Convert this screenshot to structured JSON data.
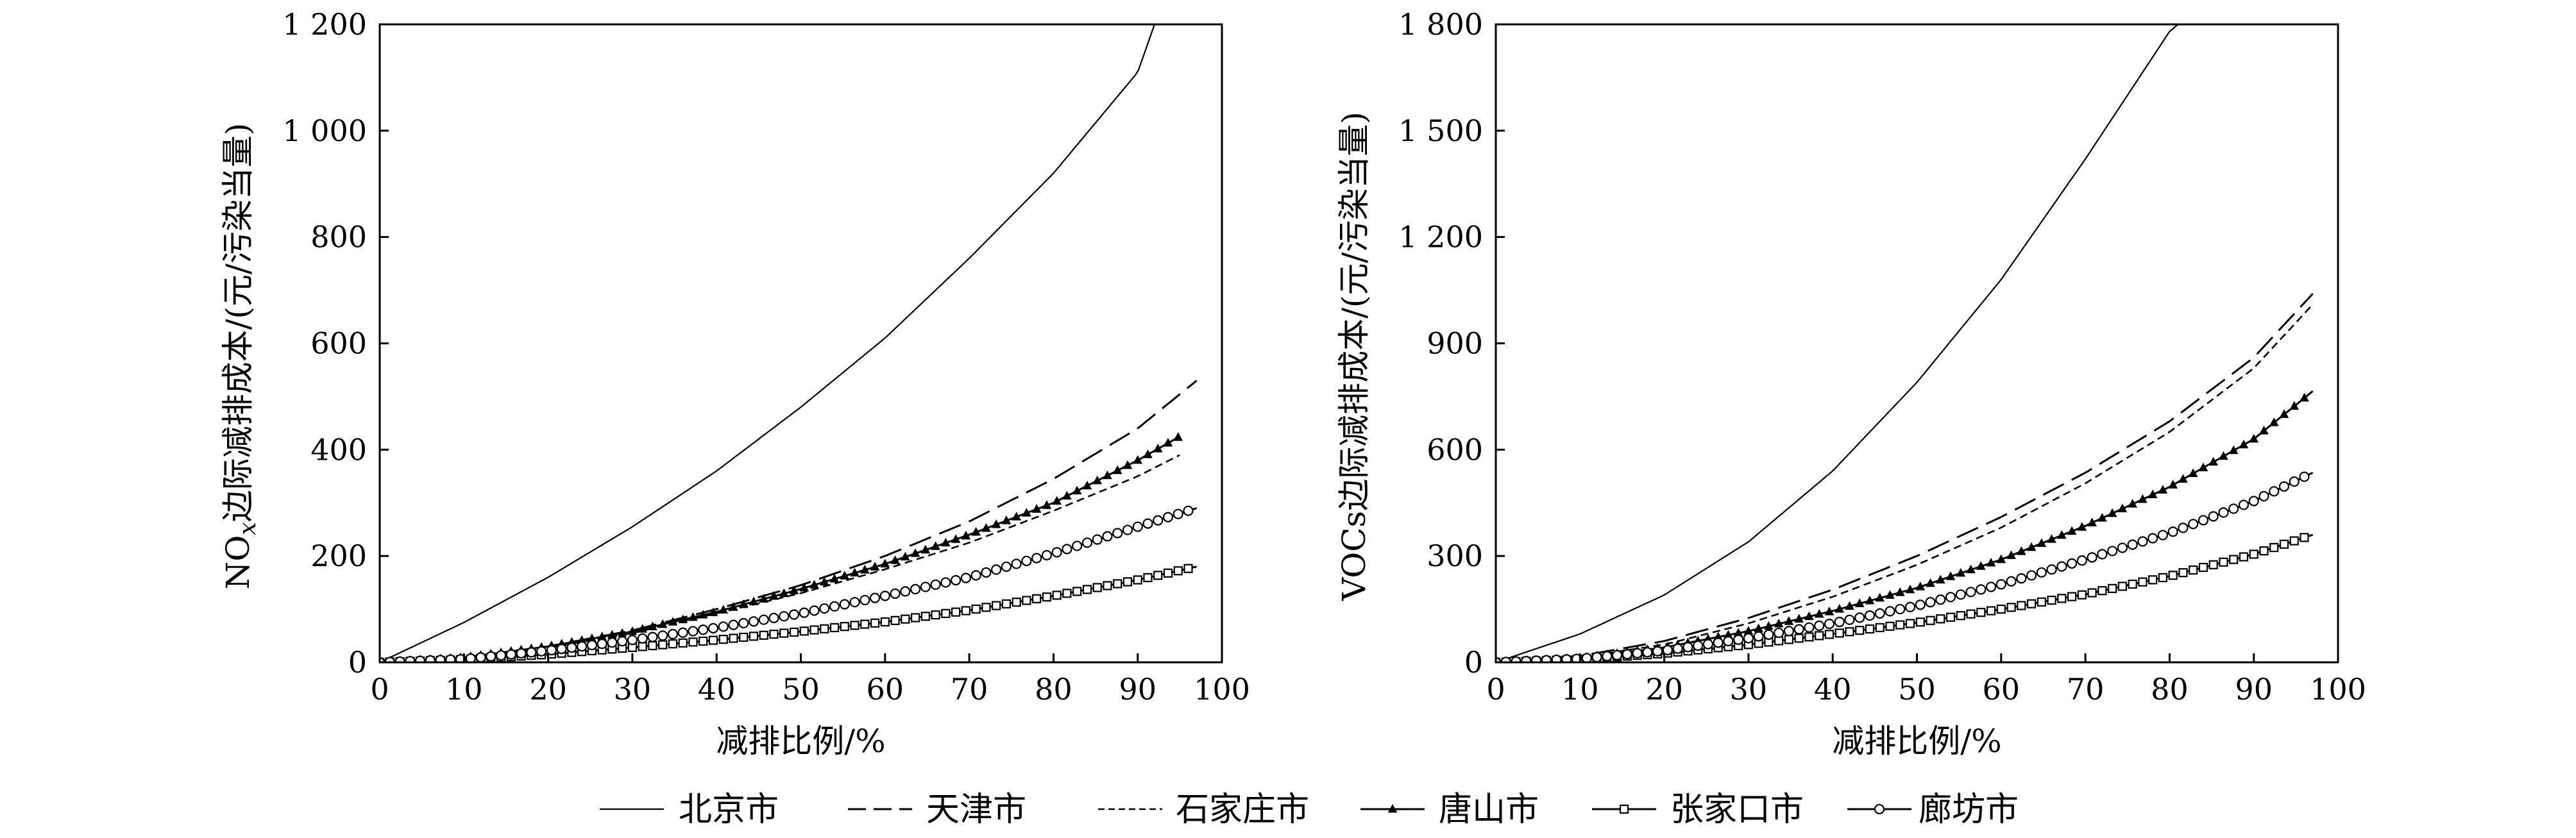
{
  "chart_data": [
    {
      "type": "line",
      "xlabel": "减排比例/%",
      "ylabel": "NOx边际减排成本/(元/污染当量)",
      "ylabel_main": "NO",
      "ylabel_sub": "x",
      "ylabel_rest": "边际减排成本/(元/污染当量)",
      "xlim": [
        0,
        100
      ],
      "ylim": [
        0,
        1200
      ],
      "xticks": [
        0,
        10,
        20,
        30,
        40,
        50,
        60,
        70,
        80,
        90,
        100
      ],
      "yticks": [
        0,
        200,
        400,
        600,
        800,
        1000,
        1200
      ],
      "xtick_labels": [
        "0",
        "10",
        "20",
        "30",
        "40",
        "50",
        "60",
        "70",
        "80",
        "90",
        "100"
      ],
      "ytick_labels": [
        "0",
        "200",
        "400",
        "600",
        "800",
        "1 000",
        "1 200"
      ],
      "series": [
        {
          "name": "北京市",
          "x": [
            0,
            10,
            20,
            30,
            40,
            50,
            60,
            70,
            80,
            90,
            92
          ],
          "y": [
            0,
            75,
            160,
            255,
            360,
            480,
            610,
            760,
            920,
            1110,
            1200
          ]
        },
        {
          "name": "天津市",
          "x": [
            0,
            10,
            20,
            30,
            40,
            50,
            60,
            70,
            80,
            90,
            97
          ],
          "y": [
            0,
            8,
            30,
            60,
            100,
            145,
            200,
            265,
            345,
            440,
            530
          ]
        },
        {
          "name": "石家庄市",
          "x": [
            0,
            10,
            20,
            30,
            40,
            50,
            60,
            70,
            80,
            90,
            95
          ],
          "y": [
            0,
            7,
            27,
            55,
            92,
            130,
            175,
            225,
            285,
            350,
            390
          ]
        },
        {
          "name": "唐山市",
          "x": [
            0,
            10,
            20,
            30,
            40,
            50,
            60,
            70,
            80,
            90,
            95
          ],
          "y": [
            0,
            9,
            30,
            58,
            95,
            138,
            185,
            240,
            300,
            380,
            425
          ]
        },
        {
          "name": "张家口市",
          "x": [
            0,
            10,
            20,
            30,
            40,
            50,
            60,
            70,
            80,
            90,
            97
          ],
          "y": [
            0,
            5,
            15,
            28,
            42,
            58,
            76,
            98,
            125,
            155,
            180
          ]
        },
        {
          "name": "廊坊市",
          "x": [
            0,
            10,
            20,
            30,
            40,
            50,
            60,
            70,
            80,
            90,
            97
          ],
          "y": [
            0,
            6,
            22,
            42,
            65,
            92,
            125,
            160,
            205,
            255,
            290
          ]
        }
      ]
    },
    {
      "type": "line",
      "xlabel": "减排比例/%",
      "ylabel": "VOCs边际减排成本/(元/污染当量)",
      "xlim": [
        0,
        100
      ],
      "ylim": [
        0,
        1800
      ],
      "xticks": [
        0,
        10,
        20,
        30,
        40,
        50,
        60,
        70,
        80,
        90,
        100
      ],
      "yticks": [
        0,
        300,
        600,
        900,
        1200,
        1500,
        1800
      ],
      "xtick_labels": [
        "0",
        "10",
        "20",
        "30",
        "40",
        "50",
        "60",
        "70",
        "80",
        "90",
        "100"
      ],
      "ytick_labels": [
        "0",
        "300",
        "600",
        "900",
        "1 200",
        "1 500",
        "1 800"
      ],
      "series": [
        {
          "name": "北京市",
          "x": [
            0,
            10,
            20,
            30,
            40,
            50,
            60,
            70,
            80,
            81
          ],
          "y": [
            0,
            80,
            190,
            340,
            540,
            790,
            1080,
            1420,
            1780,
            1800
          ]
        },
        {
          "name": "天津市",
          "x": [
            0,
            10,
            20,
            30,
            40,
            50,
            60,
            70,
            80,
            90,
            97
          ],
          "y": [
            0,
            18,
            60,
            125,
            205,
            300,
            410,
            535,
            680,
            860,
            1040
          ]
        },
        {
          "name": "石家庄市",
          "x": [
            0,
            10,
            20,
            30,
            40,
            50,
            60,
            70,
            80,
            90,
            97
          ],
          "y": [
            0,
            15,
            50,
            110,
            185,
            275,
            380,
            505,
            650,
            830,
            1010
          ]
        },
        {
          "name": "唐山市",
          "x": [
            0,
            10,
            20,
            30,
            40,
            50,
            60,
            70,
            80,
            90,
            97
          ],
          "y": [
            0,
            12,
            42,
            88,
            145,
            210,
            290,
            385,
            495,
            630,
            765
          ]
        },
        {
          "name": "张家口市",
          "x": [
            0,
            10,
            20,
            30,
            40,
            50,
            60,
            70,
            80,
            90,
            97
          ],
          "y": [
            0,
            8,
            25,
            50,
            80,
            112,
            150,
            192,
            243,
            305,
            360
          ]
        },
        {
          "name": "廊坊市",
          "x": [
            0,
            10,
            20,
            30,
            40,
            50,
            60,
            70,
            80,
            90,
            97
          ],
          "y": [
            0,
            10,
            33,
            68,
            110,
            160,
            220,
            290,
            365,
            455,
            535
          ]
        }
      ]
    }
  ],
  "legend": {
    "placement": "bottom",
    "entries": [
      {
        "name": "北京市",
        "style": "solid-thin",
        "marker": "none"
      },
      {
        "name": "天津市",
        "style": "long-dash",
        "marker": "none"
      },
      {
        "name": "石家庄市",
        "style": "short-dash",
        "marker": "none"
      },
      {
        "name": "唐山市",
        "style": "solid",
        "marker": "triangle"
      },
      {
        "name": "张家口市",
        "style": "solid",
        "marker": "square"
      },
      {
        "name": "廊坊市",
        "style": "solid",
        "marker": "circle"
      }
    ]
  }
}
